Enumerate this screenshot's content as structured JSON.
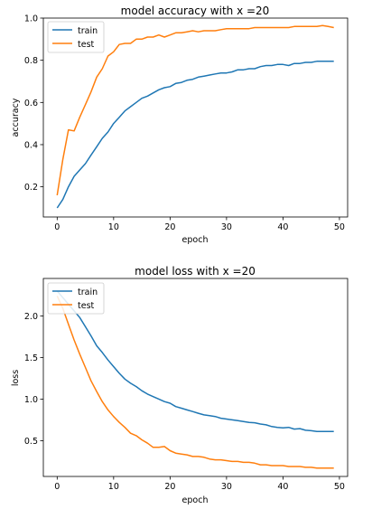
{
  "chart_data": [
    {
      "type": "line",
      "title": "model accuracy with x =20",
      "xlabel": "epoch",
      "ylabel": "accuracy",
      "xlim": [
        -2.45,
        51.45
      ],
      "ylim": [
        0.057,
        1.0
      ],
      "xticks": [
        0,
        10,
        20,
        30,
        40,
        50
      ],
      "yticks": [
        0.2,
        0.4,
        0.6,
        0.8,
        1.0
      ],
      "ytick_labels": [
        "0.2",
        "0.4",
        "0.6",
        "0.8",
        "1.0"
      ],
      "legend_position": "top-left",
      "grid": false,
      "x": [
        0,
        1,
        2,
        3,
        4,
        5,
        6,
        7,
        8,
        9,
        10,
        11,
        12,
        13,
        14,
        15,
        16,
        17,
        18,
        19,
        20,
        21,
        22,
        23,
        24,
        25,
        26,
        27,
        28,
        29,
        30,
        31,
        32,
        33,
        34,
        35,
        36,
        37,
        38,
        39,
        40,
        41,
        42,
        43,
        44,
        45,
        46,
        47,
        48,
        49
      ],
      "series": [
        {
          "name": "train",
          "color": "#1f77b4",
          "values": [
            0.1,
            0.14,
            0.2,
            0.25,
            0.28,
            0.31,
            0.35,
            0.39,
            0.43,
            0.46,
            0.5,
            0.53,
            0.56,
            0.58,
            0.6,
            0.62,
            0.63,
            0.645,
            0.66,
            0.67,
            0.675,
            0.69,
            0.695,
            0.705,
            0.71,
            0.72,
            0.725,
            0.73,
            0.735,
            0.74,
            0.74,
            0.745,
            0.755,
            0.755,
            0.76,
            0.76,
            0.77,
            0.775,
            0.775,
            0.78,
            0.78,
            0.775,
            0.785,
            0.785,
            0.79,
            0.79,
            0.795,
            0.795,
            0.795,
            0.795
          ]
        },
        {
          "name": "test",
          "color": "#ff7f0e",
          "values": [
            0.16,
            0.33,
            0.47,
            0.465,
            0.53,
            0.59,
            0.65,
            0.72,
            0.76,
            0.82,
            0.84,
            0.875,
            0.88,
            0.88,
            0.9,
            0.9,
            0.91,
            0.91,
            0.92,
            0.91,
            0.92,
            0.93,
            0.93,
            0.935,
            0.94,
            0.935,
            0.94,
            0.94,
            0.94,
            0.945,
            0.95,
            0.95,
            0.95,
            0.95,
            0.95,
            0.955,
            0.955,
            0.955,
            0.955,
            0.955,
            0.955,
            0.955,
            0.96,
            0.96,
            0.96,
            0.96,
            0.96,
            0.965,
            0.96,
            0.955
          ]
        }
      ]
    },
    {
      "type": "line",
      "title": "model loss with x =20",
      "xlabel": "epoch",
      "ylabel": "loss",
      "xlim": [
        -2.45,
        51.45
      ],
      "ylim": [
        0.07,
        2.45
      ],
      "xticks": [
        0,
        10,
        20,
        30,
        40,
        50
      ],
      "yticks": [
        0.5,
        1.0,
        1.5,
        2.0
      ],
      "ytick_labels": [
        "0.5",
        "1.0",
        "1.5",
        "2.0"
      ],
      "legend_position": "top-left",
      "grid": false,
      "x": [
        0,
        1,
        2,
        3,
        4,
        5,
        6,
        7,
        8,
        9,
        10,
        11,
        12,
        13,
        14,
        15,
        16,
        17,
        18,
        19,
        20,
        21,
        22,
        23,
        24,
        25,
        26,
        27,
        28,
        29,
        30,
        31,
        32,
        33,
        34,
        35,
        36,
        37,
        38,
        39,
        40,
        41,
        42,
        43,
        44,
        45,
        46,
        47,
        48,
        49
      ],
      "series": [
        {
          "name": "train",
          "color": "#1f77b4",
          "values": [
            2.3,
            2.22,
            2.14,
            2.06,
            1.98,
            1.87,
            1.76,
            1.64,
            1.56,
            1.47,
            1.39,
            1.31,
            1.24,
            1.19,
            1.15,
            1.1,
            1.06,
            1.03,
            1.0,
            0.97,
            0.95,
            0.91,
            0.89,
            0.87,
            0.85,
            0.83,
            0.81,
            0.8,
            0.79,
            0.77,
            0.76,
            0.75,
            0.74,
            0.73,
            0.72,
            0.715,
            0.7,
            0.69,
            0.67,
            0.66,
            0.655,
            0.66,
            0.64,
            0.645,
            0.625,
            0.62,
            0.61,
            0.61,
            0.61,
            0.61
          ]
        },
        {
          "name": "test",
          "color": "#ff7f0e",
          "values": [
            2.24,
            2.09,
            1.9,
            1.71,
            1.54,
            1.38,
            1.22,
            1.09,
            0.97,
            0.87,
            0.79,
            0.72,
            0.66,
            0.59,
            0.56,
            0.51,
            0.47,
            0.42,
            0.42,
            0.43,
            0.38,
            0.35,
            0.34,
            0.33,
            0.31,
            0.31,
            0.3,
            0.28,
            0.27,
            0.27,
            0.26,
            0.25,
            0.25,
            0.24,
            0.24,
            0.23,
            0.21,
            0.21,
            0.2,
            0.2,
            0.2,
            0.19,
            0.19,
            0.19,
            0.18,
            0.18,
            0.17,
            0.17,
            0.17,
            0.17
          ]
        }
      ]
    }
  ]
}
